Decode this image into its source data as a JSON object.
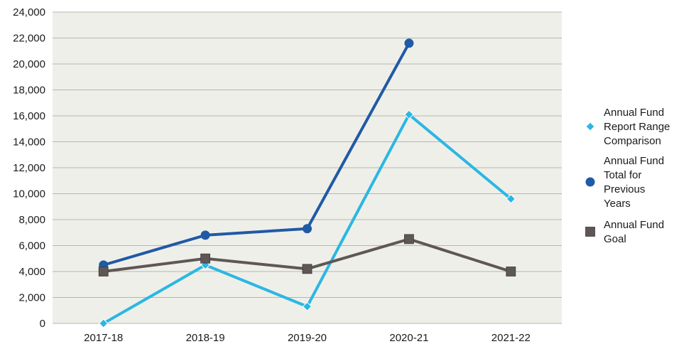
{
  "chart_data": {
    "type": "line",
    "categories": [
      "2017-18",
      "2018-19",
      "2019-20",
      "2020-21",
      "2021-22"
    ],
    "ylim": [
      0,
      24000
    ],
    "yticks": [
      0,
      2000,
      4000,
      6000,
      8000,
      10000,
      12000,
      14000,
      16000,
      18000,
      20000,
      22000,
      24000
    ],
    "ytick_labels": [
      "0",
      "2,000",
      "4,000",
      "6,000",
      "8,000",
      "10,000",
      "12,000",
      "14,000",
      "16,000",
      "18,000",
      "20,000",
      "22,000",
      "24,000"
    ],
    "grid": true,
    "legend_position": "right",
    "series": [
      {
        "name": "Annual Fund Report Range Comparison",
        "legend_lines": [
          "Annual Fund",
          "Report Range",
          "Comparison"
        ],
        "marker": "diamond",
        "color": "#2bb7e3",
        "values": [
          0,
          4500,
          1300,
          16100,
          9600
        ]
      },
      {
        "name": "Annual Fund Total for Previous Years",
        "legend_lines": [
          "Annual Fund",
          "Total for",
          "Previous",
          "Years"
        ],
        "marker": "circle",
        "color": "#1f5aa6",
        "values": [
          4500,
          6800,
          7300,
          21600,
          null
        ]
      },
      {
        "name": "Annual Fund Goal",
        "legend_lines": [
          "Annual Fund",
          "Goal"
        ],
        "marker": "square",
        "color": "#5e5755",
        "values": [
          4000,
          5000,
          4200,
          6500,
          4000
        ]
      }
    ]
  }
}
